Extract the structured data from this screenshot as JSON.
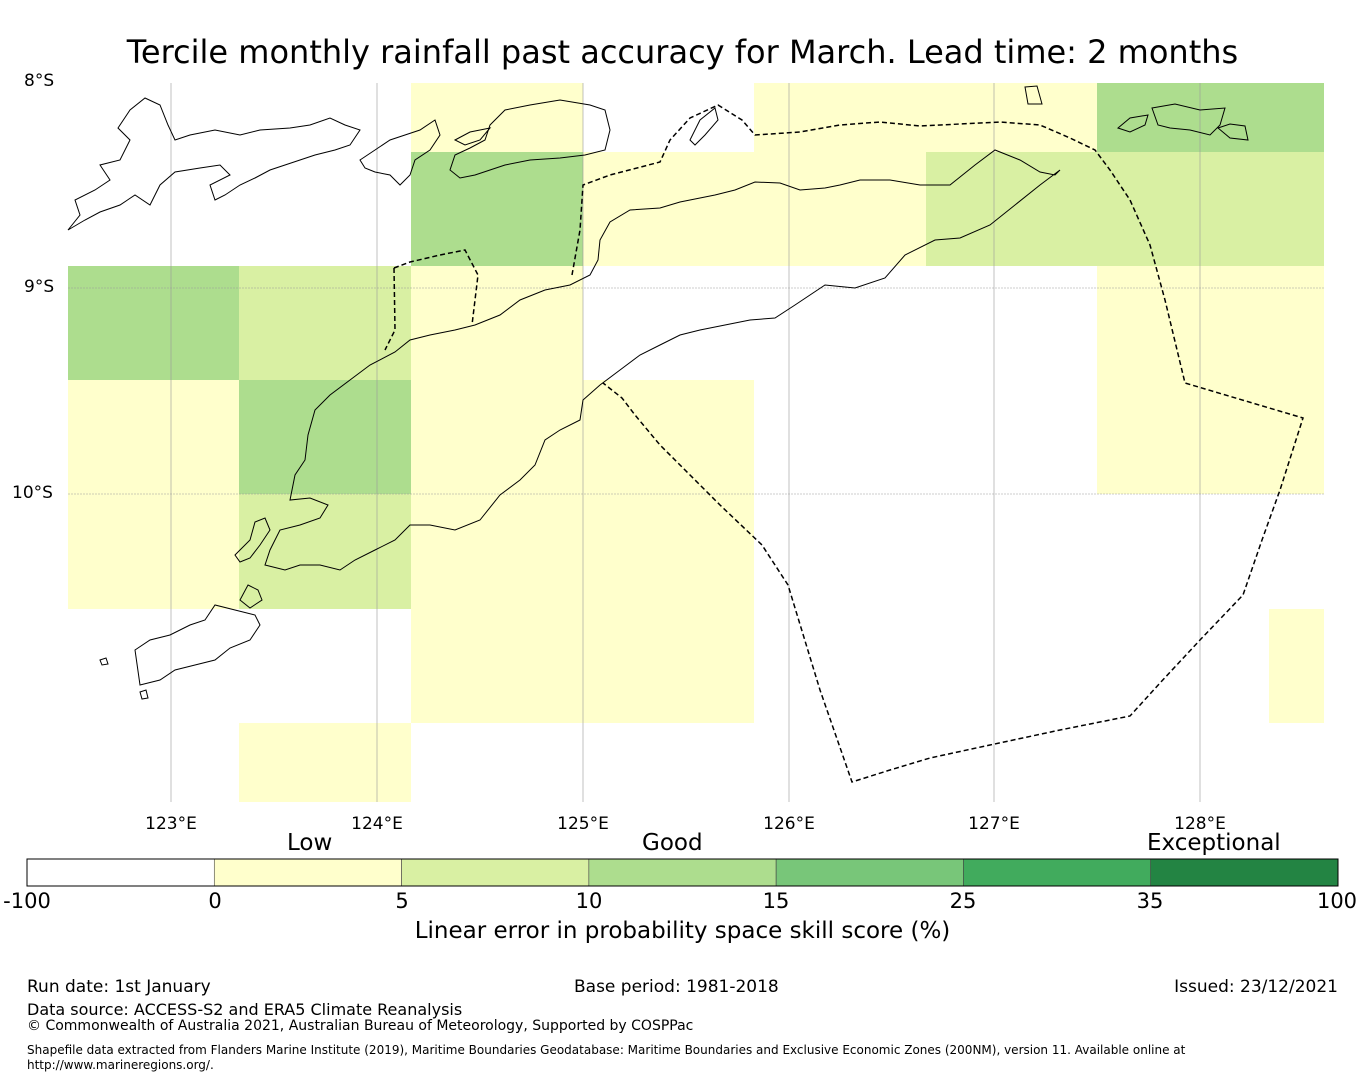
{
  "title": "Tercile monthly rainfall past accuracy for March. Lead time: 2 months",
  "axes": {
    "lat_labels": [
      "8°S",
      "9°S",
      "10°S"
    ],
    "lon_labels": [
      "123°E",
      "124°E",
      "125°E",
      "126°E",
      "127°E",
      "128°E"
    ]
  },
  "colorbar": {
    "categories": [
      "Low",
      "Good",
      "Exceptional"
    ],
    "ticks": [
      "-100",
      "0",
      "5",
      "10",
      "15",
      "25",
      "35",
      "100"
    ],
    "colors": [
      "#ffffff",
      "#ffffcc",
      "#d9f0a3",
      "#addd8e",
      "#78c679",
      "#41ab5d",
      "#238443"
    ],
    "label": "Linear error in probability space skill score (%)"
  },
  "footer": {
    "run_date": "Run date: 1st January",
    "base_period": "Base period: 1981-2018",
    "issued": "Issued: 23/12/2021",
    "data_source": "Data source: ACCESS-S2 and ERA5 Climate Reanalysis",
    "copyright": "© Commonwealth of Australia 2021, Australian Bureau of Meteorology, Supported by COSPPac",
    "shapefile_line1": "Shapefile data extracted from Flanders Marine Institute (2019), Maritime Boundaries Geodatabase: Maritime Boundaries and Exclusive Economic Zones (200NM), version 11. Available online at",
    "shapefile_line2": "http://www.marineregions.org/."
  }
}
